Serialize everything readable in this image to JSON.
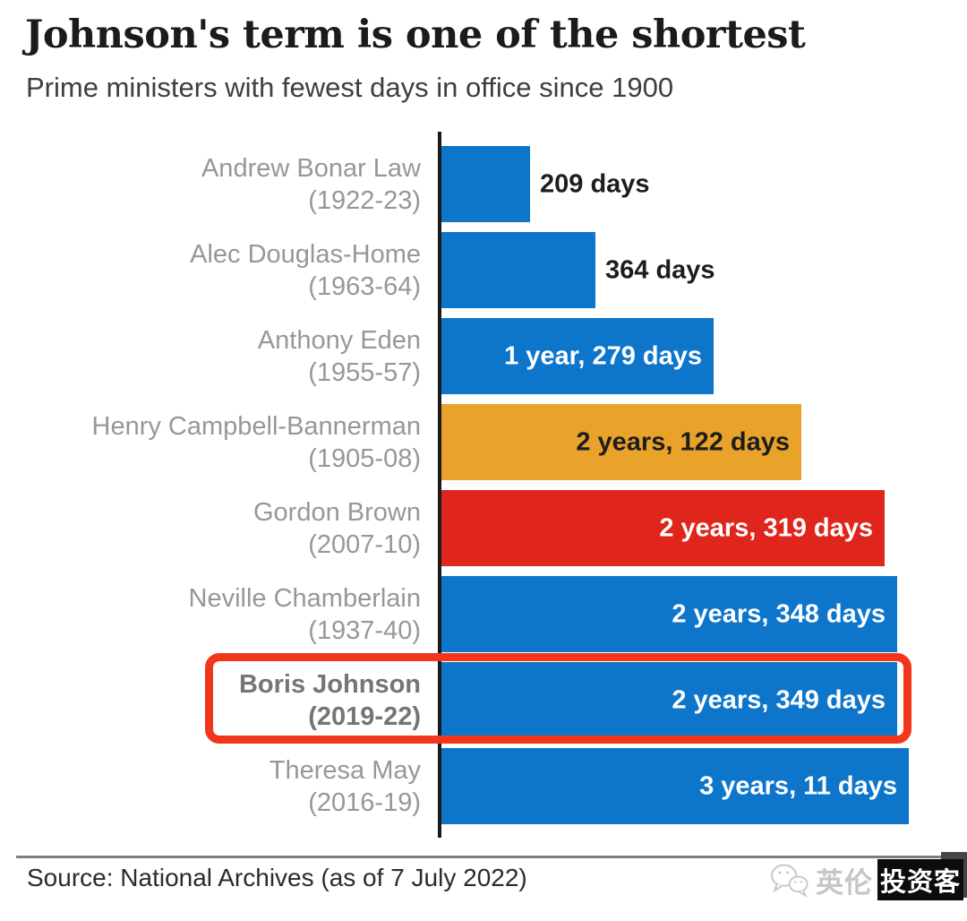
{
  "title": "Johnson's term is one of the shortest",
  "subtitle": "Prime ministers with fewest days in office since 1900",
  "source": "Source: National Archives (as of 7 July 2022)",
  "watermark": {
    "icon": "wechat-icon",
    "text_light": "英伦",
    "text_boxed": "投资客"
  },
  "colors": {
    "bar_blue": "#0d76cb",
    "bar_orange": "#e9a22a",
    "bar_red": "#e0251c",
    "highlight_box": "#f2361c",
    "label_dark": "#1d1d1d",
    "label_white": "#ffffff",
    "name_gray": "#979797",
    "axis": "#1a1a1a"
  },
  "chart_data": {
    "type": "bar",
    "orientation": "horizontal",
    "title": "Johnson's term is one of the shortest",
    "subtitle": "Prime ministers with fewest days in office since 1900",
    "unit": "days in office",
    "xlim_days": [
      0,
      1120
    ],
    "grid": false,
    "legend": false,
    "rows": [
      {
        "name": "Andrew Bonar Law",
        "years": "(1922-23)",
        "value_label": "209 days",
        "total_days": 209,
        "color": "blue",
        "value_placement": "outside",
        "highlight": false
      },
      {
        "name": "Alec Douglas-Home",
        "years": "(1963-64)",
        "value_label": "364 days",
        "total_days": 364,
        "color": "blue",
        "value_placement": "outside",
        "highlight": false
      },
      {
        "name": "Anthony Eden",
        "years": "(1955-57)",
        "value_label": "1 year, 279 days",
        "total_days": 644,
        "color": "blue",
        "value_placement": "inside",
        "highlight": false
      },
      {
        "name": "Henry Campbell-Bannerman",
        "years": "(1905-08)",
        "value_label": "2 years, 122 days",
        "total_days": 852,
        "color": "orange",
        "value_placement": "inside",
        "highlight": false
      },
      {
        "name": "Gordon Brown",
        "years": "(2007-10)",
        "value_label": "2 years, 319 days",
        "total_days": 1049,
        "color": "red",
        "value_placement": "inside",
        "highlight": false
      },
      {
        "name": "Neville Chamberlain",
        "years": "(1937-40)",
        "value_label": "2 years, 348 days",
        "total_days": 1078,
        "color": "blue",
        "value_placement": "inside",
        "highlight": false
      },
      {
        "name": "Boris Johnson",
        "years": "(2019-22)",
        "value_label": "2 years, 349 days",
        "total_days": 1079,
        "color": "blue",
        "value_placement": "inside",
        "highlight": true
      },
      {
        "name": "Theresa May",
        "years": "(2016-19)",
        "value_label": "3 years, 11 days",
        "total_days": 1106,
        "color": "blue",
        "value_placement": "inside",
        "highlight": false
      }
    ]
  }
}
